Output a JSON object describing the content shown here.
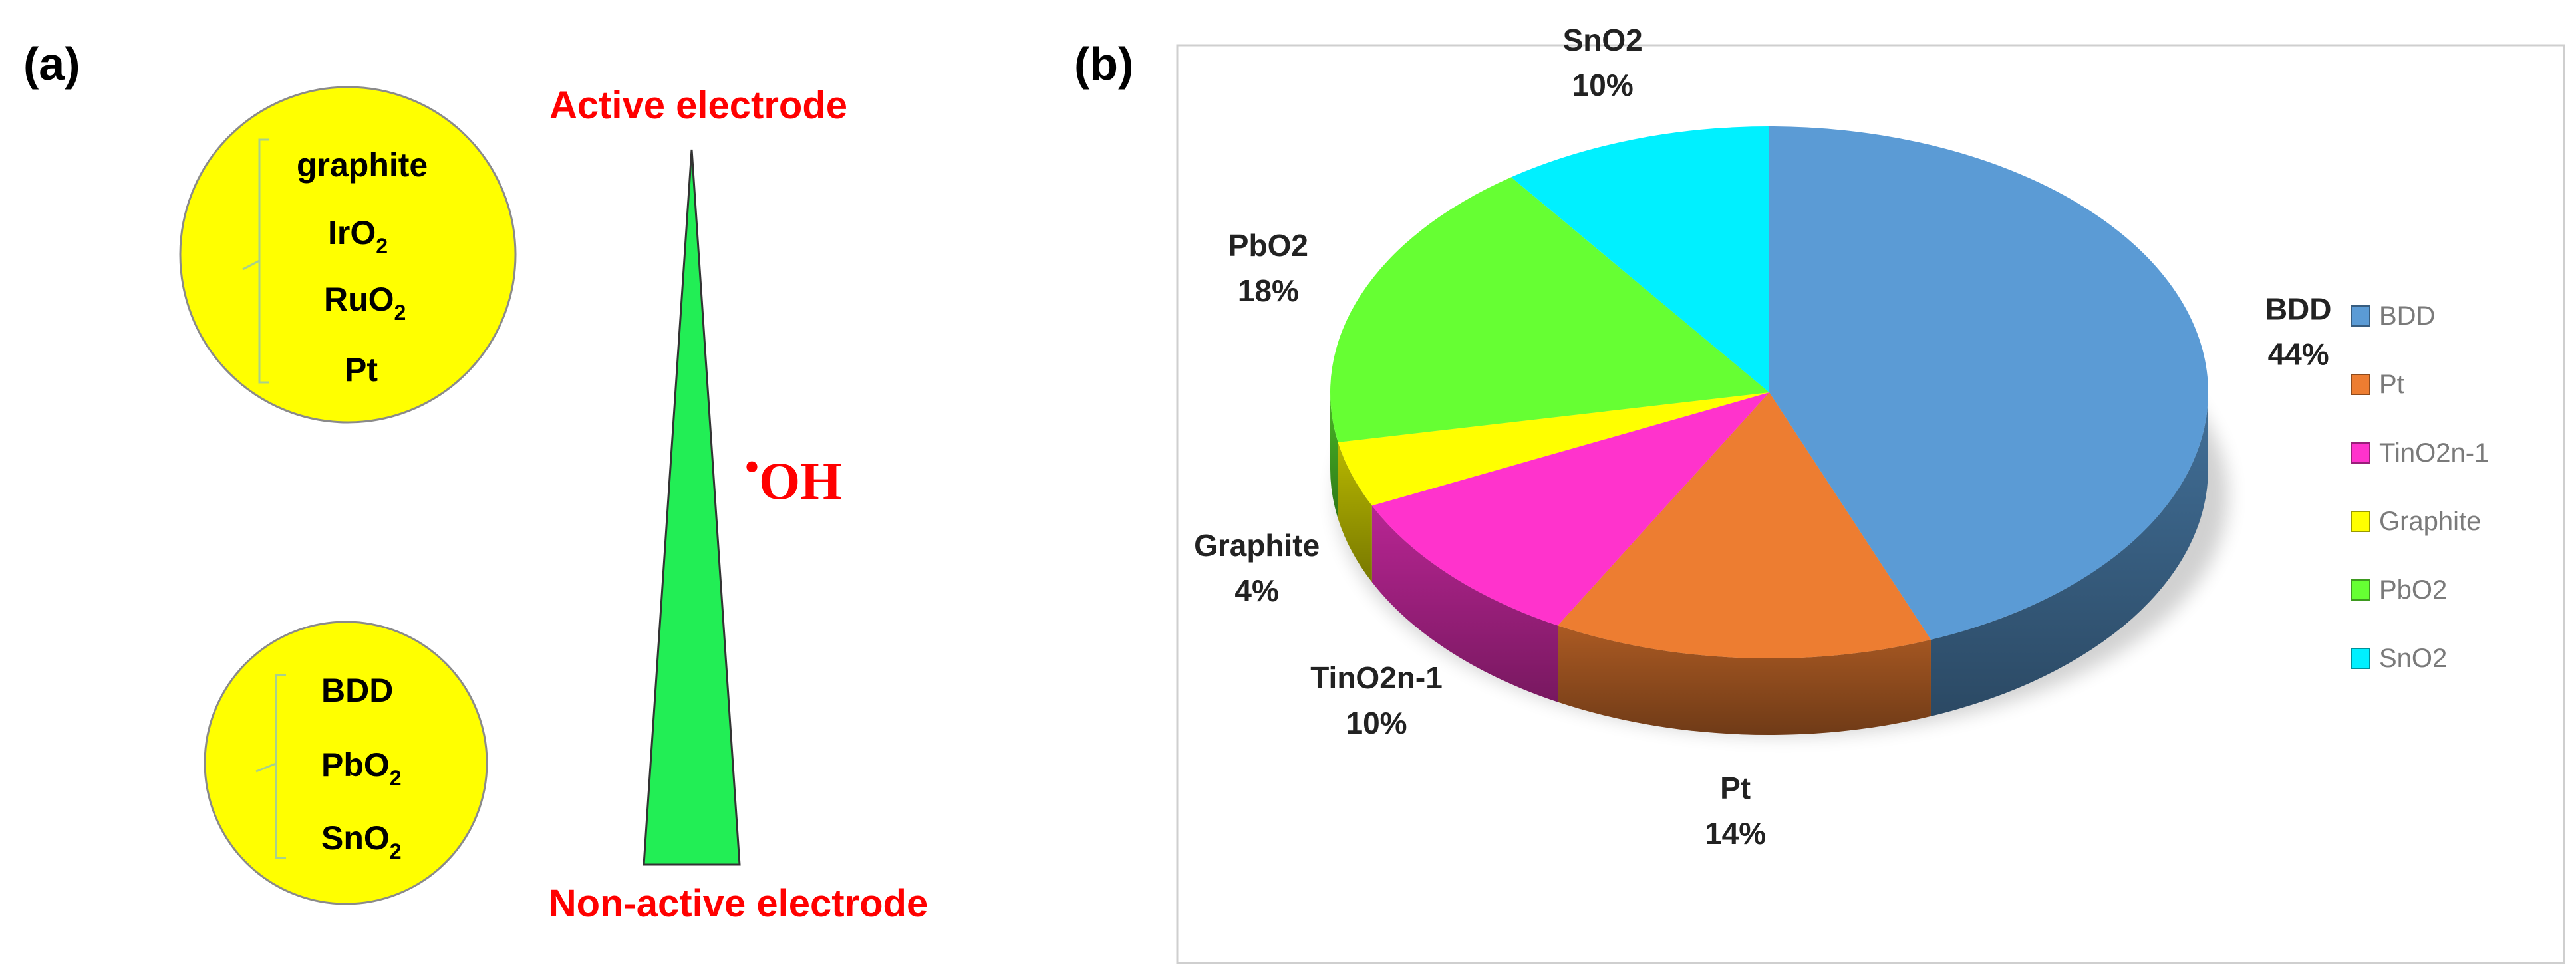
{
  "panel_a": {
    "label": "(a)",
    "active_label": "Active electrode",
    "nonactive_label": "Non-active electrode",
    "radical_dot": "•",
    "radical_label": "OH",
    "accent_red": "#ff0000",
    "circle_color": "#ffff00",
    "triangle_color": "#22ee55",
    "active_electrodes": [
      {
        "base": "graphite",
        "sub": ""
      },
      {
        "base": "IrO",
        "sub": "2"
      },
      {
        "base": "RuO",
        "sub": "2"
      },
      {
        "base": "Pt",
        "sub": ""
      }
    ],
    "nonactive_electrodes": [
      {
        "base": "BDD",
        "sub": ""
      },
      {
        "base": "PbO",
        "sub": "2"
      },
      {
        "base": "SnO",
        "sub": "2"
      }
    ]
  },
  "panel_b": {
    "label": "(b)"
  },
  "chart_data": {
    "type": "pie",
    "title": "",
    "legend_position": "right",
    "slices": [
      {
        "name": "BDD",
        "value": 44,
        "label": "44%",
        "color": "#5b9bd5"
      },
      {
        "name": "Pt",
        "value": 14,
        "label": "14%",
        "color": "#ed7d31"
      },
      {
        "name": "TinO2n-1",
        "value": 10,
        "label": "10%",
        "color": "#ff33cc"
      },
      {
        "name": "Graphite",
        "value": 4,
        "label": "4%",
        "color": "#ffff00"
      },
      {
        "name": "PbO2",
        "value": 18,
        "label": "18%",
        "color": "#66ff33"
      },
      {
        "name": "SnO2",
        "value": 10,
        "label": "10%",
        "color": "#00f0ff"
      }
    ]
  }
}
